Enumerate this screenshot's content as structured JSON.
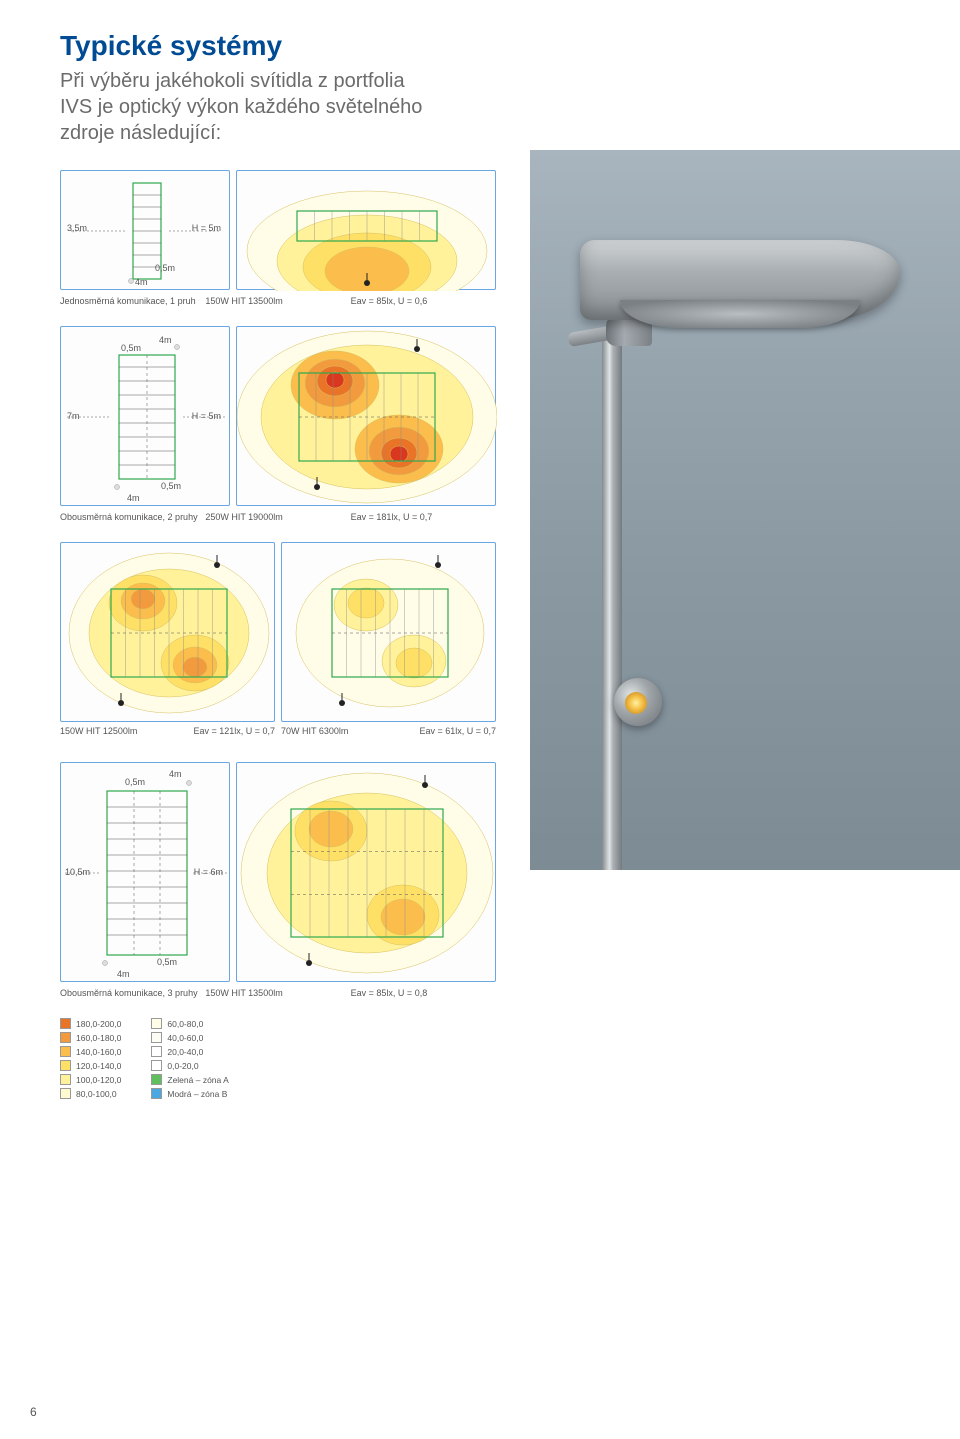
{
  "title": "Typické systémy",
  "subtitle_l1": "Při výběru jakéhokoli svítidla z portfolia",
  "subtitle_l2": "IVS je optický výkon každého světelného",
  "subtitle_l3": "zdroje následující:",
  "dims": {
    "w_3_5m": "3,5m",
    "w_7m": "7m",
    "w_10_5m": "10,5m",
    "o_0_5m": "0,5m",
    "o_4m": "4m",
    "h_5m": "H = 5m",
    "h_6m": "H = 6m"
  },
  "captions": {
    "row1_left": "Jednosměrná komunikace, 1 pruh",
    "row1_mid": "150W HIT 13500lm",
    "row1_right": "Eav = 85lx, U = 0,6",
    "row2_left": "Obousměrná komunikace, 2 pruhy",
    "row2_mid": "250W HIT 19000lm",
    "row2_right": "Eav = 181lx, U = 0,7",
    "row3_a_left": "150W HIT 12500lm",
    "row3_a_right": "Eav = 121lx, U = 0,7",
    "row3_b_left": "70W HIT 6300lm",
    "row3_b_right": "Eav = 61lx, U = 0,7",
    "row4_left": "Obousměrná komunikace, 3 pruhy",
    "row4_mid": "150W HIT 13500lm",
    "row4_right": "Eav = 85lx, U = 0,8"
  },
  "legend": {
    "colA": [
      {
        "c": "#e97428",
        "t": "180,0-200,0"
      },
      {
        "c": "#f29b3e",
        "t": "160,0-180,0"
      },
      {
        "c": "#fbbd4c",
        "t": "140,0-160,0"
      },
      {
        "c": "#ffe066",
        "t": "120,0-140,0"
      },
      {
        "c": "#fff29a",
        "t": "100,0-120,0"
      },
      {
        "c": "#fffad0",
        "t": "80,0-100,0"
      }
    ],
    "colB": [
      {
        "c": "#fffde8",
        "t": "60,0-80,0"
      },
      {
        "c": "#fdfdf5",
        "t": "40,0-60,0"
      },
      {
        "c": "#ffffff",
        "t": "20,0-40,0"
      },
      {
        "c": "#ffffff",
        "t": "0,0-20,0"
      },
      {
        "c": "#5fbf5f",
        "t": "Zelená – zóna A"
      },
      {
        "c": "#4aa7e0",
        "t": "Modrá – zóna B"
      }
    ]
  },
  "contour_colors": {
    "c1": "#fffde8",
    "c2": "#fff29a",
    "c3": "#ffe066",
    "c4": "#fbbd4c",
    "c5": "#f29b3e",
    "c6": "#e97428",
    "c7": "#d9381e"
  },
  "pagenum": "6"
}
